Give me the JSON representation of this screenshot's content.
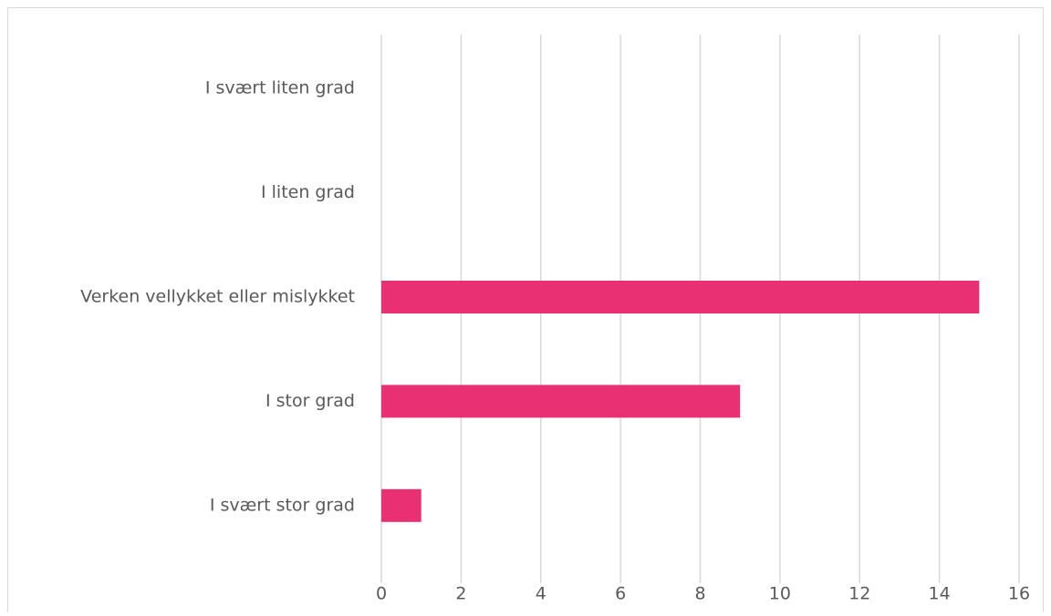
{
  "chart_data": {
    "type": "barh",
    "categories": [
      "I svært liten grad",
      "I liten grad",
      "Verken vellykket eller mislykket",
      "I stor grad",
      "I svært stor grad"
    ],
    "values": [
      0,
      0,
      15,
      9,
      1
    ],
    "color": "#e83073",
    "xlim": [
      0,
      16
    ],
    "xticks": [
      0,
      2,
      4,
      6,
      8,
      10,
      12,
      14,
      16
    ],
    "grid": true
  }
}
